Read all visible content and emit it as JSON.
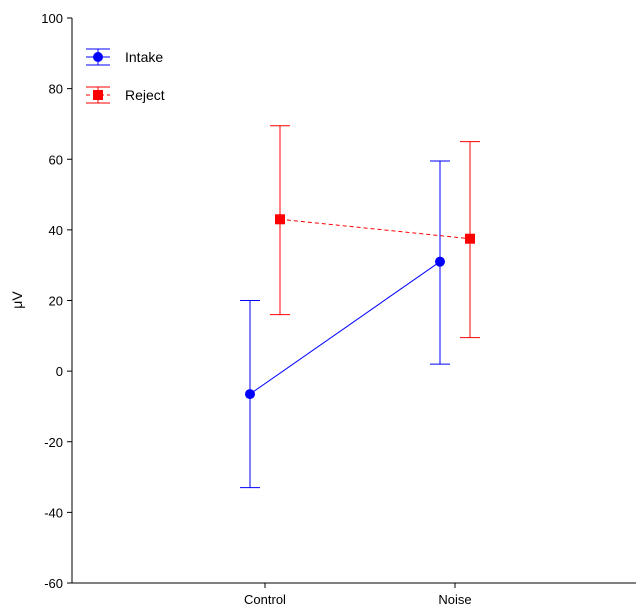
{
  "chart_data": {
    "type": "line",
    "categories": [
      "Control",
      "Noise"
    ],
    "ylabel": "μV",
    "xlabel": "",
    "title": "",
    "ylim": [
      -60,
      100
    ],
    "yticks": [
      -60,
      -40,
      -20,
      0,
      20,
      40,
      60,
      80,
      100
    ],
    "grid": false,
    "legend": "top-left",
    "series": [
      {
        "name": "Intake",
        "color": "#0000ff",
        "marker": "circle",
        "line": "solid",
        "values": [
          -6.5,
          31
        ],
        "lower": [
          -33,
          2
        ],
        "upper": [
          20,
          59.5
        ]
      },
      {
        "name": "Reject",
        "color": "#ff0000",
        "marker": "square",
        "line": "dashed",
        "values": [
          43,
          37.5
        ],
        "lower": [
          16,
          9.5
        ],
        "upper": [
          69.5,
          65
        ]
      }
    ]
  }
}
